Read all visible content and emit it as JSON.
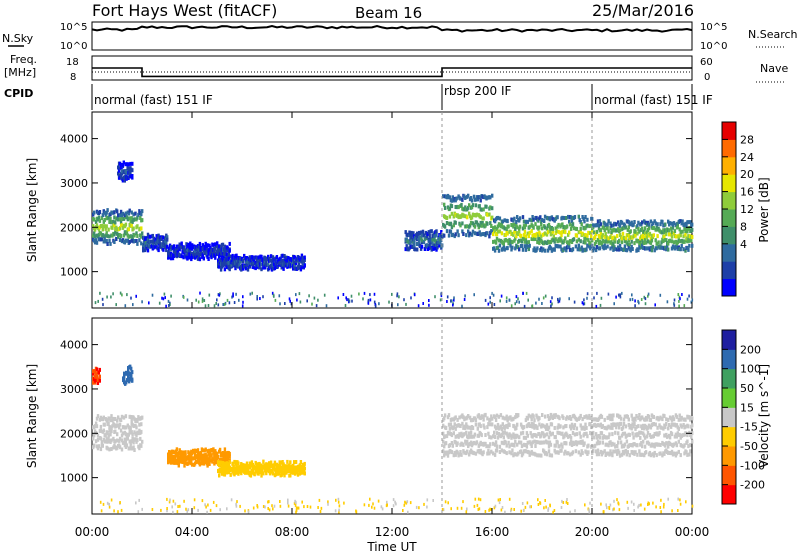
{
  "header": {
    "title": "Fort Hays West (fitACF)",
    "beam": "Beam 16",
    "date": "25/Mar/2016"
  },
  "summary": {
    "nsky_label": "N.Sky",
    "nsearch_label": "N.Search",
    "freq_label_1": "Freq.",
    "freq_label_2": "[MHz]",
    "nave_label": "Nave",
    "cpid_label": "CPID",
    "nsky_ticks": [
      "10^5",
      "10^0"
    ],
    "nsearch_ticks": [
      "10^5",
      "10^0"
    ],
    "freq_ticks": [
      "18",
      "8"
    ],
    "nave_ticks": [
      "60",
      "0"
    ],
    "cpid_segments": [
      {
        "label": "normal (fast) 151 IF",
        "start": 0,
        "end": 14
      },
      {
        "label": "rbsp 200 IF",
        "start": 14,
        "end": 20
      },
      {
        "label": "normal (fast) 151 IF",
        "start": 20,
        "end": 24
      }
    ],
    "freq_steps": [
      {
        "start": 0,
        "end": 2,
        "level": 13
      },
      {
        "start": 2,
        "end": 14,
        "level": 8.8
      },
      {
        "start": 14,
        "end": 24,
        "level": 13
      }
    ]
  },
  "colorbars": {
    "power": {
      "label": "Power [dB]",
      "ticks": [
        "28",
        "24",
        "20",
        "16",
        "12",
        "8",
        "4"
      ],
      "colors": [
        "#0000ff",
        "#1d3fa8",
        "#2f6b9f",
        "#3f8f6a",
        "#55aa55",
        "#8fcc3a",
        "#e6e600",
        "#ffb000",
        "#ff6a00",
        "#e60000"
      ]
    },
    "velocity": {
      "label": "Velocity [m s^-1]",
      "ticks": [
        "200",
        "100",
        "50",
        "15",
        "-15",
        "-50",
        "-100",
        "-200"
      ],
      "colors": [
        "#1f1fa0",
        "#2e6ab0",
        "#3fa060",
        "#66cc33",
        "#c8c8c8",
        "#ffcc00",
        "#ff9900",
        "#ff5500",
        "#ff0000"
      ]
    }
  },
  "axes": {
    "ylabel": "Slant Range [km]",
    "xlabel": "Time UT",
    "y_ticks": [
      "4000",
      "3000",
      "2000",
      "1000"
    ],
    "x_ticks": [
      "00:00",
      "04:00",
      "08:00",
      "12:00",
      "16:00",
      "20:00",
      "00:00"
    ]
  },
  "chart_data": {
    "type": "heatmap",
    "title": "Fort Hays West (fitACF)",
    "xlabel": "Time UT",
    "ylabel": "Slant Range [km]",
    "xlim": [
      0,
      24
    ],
    "ylim": [
      180,
      4600
    ],
    "panels": [
      {
        "name": "Power",
        "colorbar_label": "Power [dB]",
        "regions": [
          {
            "t0": 0.0,
            "t1": 2.0,
            "r_center": 2050,
            "r_width": 650,
            "power": 18
          },
          {
            "t0": 1.0,
            "t1": 1.6,
            "r_center": 3300,
            "r_width": 300,
            "power": 6
          },
          {
            "t0": 2.0,
            "t1": 3.0,
            "r_center": 1700,
            "r_width": 250,
            "power": 8
          },
          {
            "t0": 3.0,
            "t1": 5.5,
            "r_center": 1500,
            "r_width": 250,
            "power": 5
          },
          {
            "t0": 5.0,
            "t1": 8.5,
            "r_center": 1250,
            "r_width": 200,
            "power": 6
          },
          {
            "t0": 12.5,
            "t1": 14.0,
            "r_center": 1750,
            "r_width": 300,
            "power": 10
          },
          {
            "t0": 14.0,
            "t1": 16.0,
            "r_center": 2300,
            "r_width": 800,
            "power": 18
          },
          {
            "t0": 16.0,
            "t1": 20.0,
            "r_center": 1900,
            "r_width": 650,
            "power": 20
          },
          {
            "t0": 20.0,
            "t1": 24.0,
            "r_center": 1850,
            "r_width": 550,
            "power": 20
          }
        ]
      },
      {
        "name": "Velocity",
        "colorbar_label": "Velocity [m s^-1]",
        "regions": [
          {
            "t0": 0.0,
            "t1": 2.0,
            "r_center": 2050,
            "r_width": 650,
            "velocity": 0
          },
          {
            "t0": 0.0,
            "t1": 0.3,
            "r_center": 3350,
            "r_width": 250,
            "velocity": -200
          },
          {
            "t0": 1.2,
            "t1": 1.6,
            "r_center": 3350,
            "r_width": 300,
            "velocity": 150
          },
          {
            "t0": 3.0,
            "t1": 5.5,
            "r_center": 1500,
            "r_width": 250,
            "velocity": -60
          },
          {
            "t0": 5.0,
            "t1": 8.5,
            "r_center": 1250,
            "r_width": 200,
            "velocity": -40
          },
          {
            "t0": 14.0,
            "t1": 24.0,
            "r_center": 2000,
            "r_width": 800,
            "velocity": 0
          }
        ]
      }
    ]
  }
}
